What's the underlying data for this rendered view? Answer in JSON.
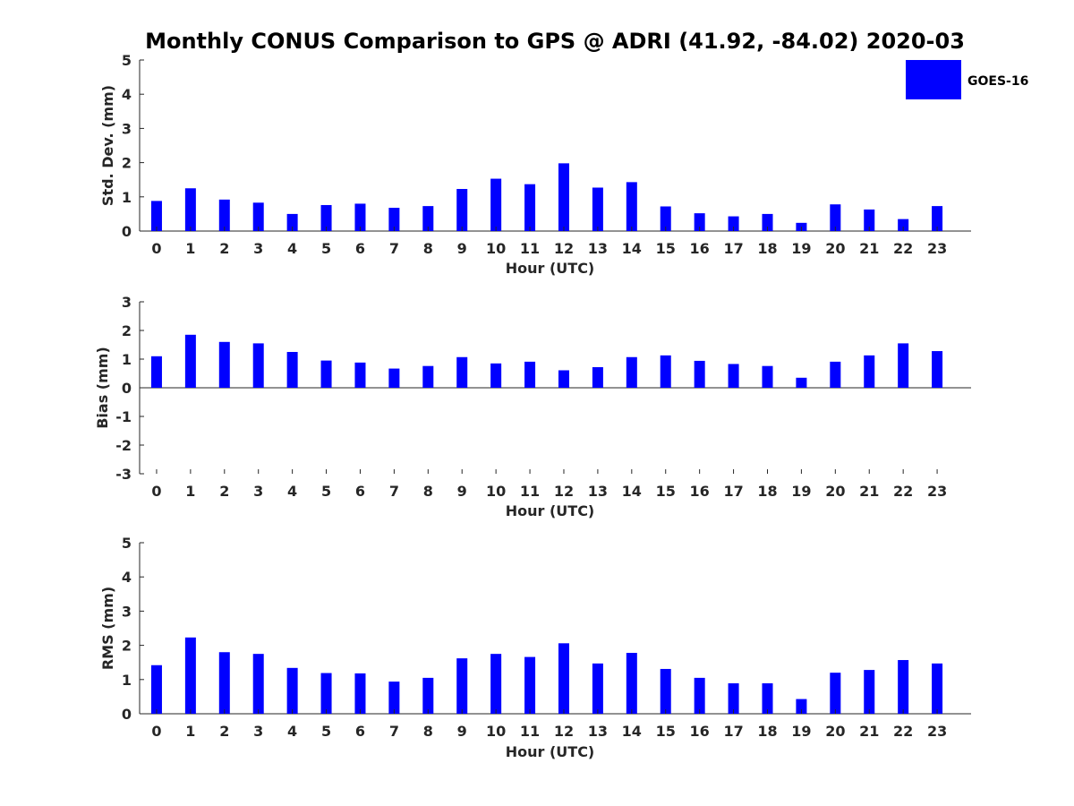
{
  "figure_title": "Monthly CONUS Comparison to GPS @ ADRI (41.92, -84.02) 2020-03",
  "legend": {
    "label": "GOES-16",
    "color": "#0000ff"
  },
  "chart_data": [
    {
      "type": "bar",
      "ylabel": "Std. Dev. (mm)",
      "xlabel": "Hour (UTC)",
      "ylim": [
        0,
        5
      ],
      "yticks": [
        0,
        1,
        2,
        3,
        4,
        5
      ],
      "categories": [
        "0",
        "1",
        "2",
        "3",
        "4",
        "5",
        "6",
        "7",
        "8",
        "9",
        "10",
        "11",
        "12",
        "13",
        "14",
        "15",
        "16",
        "17",
        "18",
        "19",
        "20",
        "21",
        "22",
        "23"
      ],
      "series": [
        {
          "name": "GOES-16",
          "values": [
            0.88,
            1.25,
            0.92,
            0.83,
            0.5,
            0.76,
            0.8,
            0.68,
            0.73,
            1.23,
            1.53,
            1.37,
            1.98,
            1.27,
            1.43,
            0.72,
            0.52,
            0.43,
            0.5,
            0.24,
            0.78,
            0.63,
            0.35,
            0.73
          ]
        }
      ]
    },
    {
      "type": "bar",
      "ylabel": "Bias (mm)",
      "xlabel": "Hour (UTC)",
      "ylim": [
        -3,
        3
      ],
      "yticks": [
        -3,
        -2,
        -1,
        0,
        1,
        2,
        3
      ],
      "categories": [
        "0",
        "1",
        "2",
        "3",
        "4",
        "5",
        "6",
        "7",
        "8",
        "9",
        "10",
        "11",
        "12",
        "13",
        "14",
        "15",
        "16",
        "17",
        "18",
        "19",
        "20",
        "21",
        "22",
        "23"
      ],
      "series": [
        {
          "name": "GOES-16",
          "values": [
            1.1,
            1.85,
            1.6,
            1.55,
            1.25,
            0.95,
            0.88,
            0.67,
            0.76,
            1.07,
            0.85,
            0.91,
            0.61,
            0.72,
            1.07,
            1.13,
            0.94,
            0.83,
            0.76,
            0.35,
            0.91,
            1.13,
            1.55,
            1.28
          ]
        }
      ]
    },
    {
      "type": "bar",
      "ylabel": "RMS (mm)",
      "xlabel": "Hour (UTC)",
      "ylim": [
        0,
        5
      ],
      "yticks": [
        0,
        1,
        2,
        3,
        4,
        5
      ],
      "categories": [
        "0",
        "1",
        "2",
        "3",
        "4",
        "5",
        "6",
        "7",
        "8",
        "9",
        "10",
        "11",
        "12",
        "13",
        "14",
        "15",
        "16",
        "17",
        "18",
        "19",
        "20",
        "21",
        "22",
        "23"
      ],
      "series": [
        {
          "name": "GOES-16",
          "values": [
            1.42,
            2.23,
            1.8,
            1.75,
            1.34,
            1.19,
            1.18,
            0.94,
            1.05,
            1.62,
            1.75,
            1.66,
            2.06,
            1.47,
            1.78,
            1.31,
            1.05,
            0.89,
            0.89,
            0.43,
            1.2,
            1.28,
            1.57,
            1.47
          ]
        }
      ]
    }
  ]
}
